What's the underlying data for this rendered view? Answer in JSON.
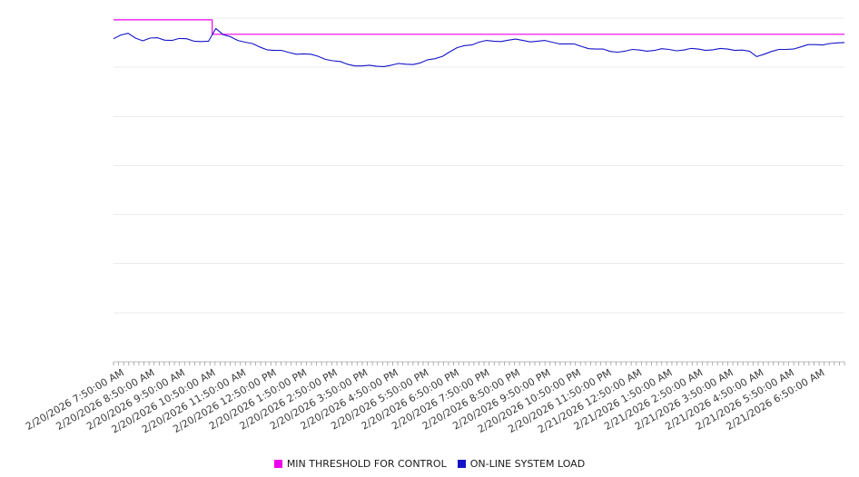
{
  "chart_data": {
    "type": "line",
    "title": "",
    "xlabel": "",
    "ylabel": "",
    "ylim": [
      0,
      100
    ],
    "grid": "horizontal",
    "gridline_count": 8,
    "legend_position": "bottom-center",
    "x_tick_labels": [
      "2/20/2026 7:50:00 AM",
      "2/20/2026 8:50:00 AM",
      "2/20/2026 9:50:00 AM",
      "2/20/2026 10:50:00 AM",
      "2/20/2026 11:50:00 AM",
      "2/20/2026 12:50:00 PM",
      "2/20/2026 1:50:00 PM",
      "2/20/2026 2:50:00 PM",
      "2/20/2026 3:50:00 PM",
      "2/20/2026 4:50:00 PM",
      "2/20/2026 5:50:00 PM",
      "2/20/2026 6:50:00 PM",
      "2/20/2026 7:50:00 PM",
      "2/20/2026 8:50:00 PM",
      "2/20/2026 9:50:00 PM",
      "2/20/2026 10:50:00 PM",
      "2/20/2026 11:50:00 PM",
      "2/21/2026 12:50:00 AM",
      "2/21/2026 1:50:00 AM",
      "2/21/2026 2:50:00 AM",
      "2/21/2026 3:50:00 AM",
      "2/21/2026 4:50:00 AM",
      "2/21/2026 5:50:00 AM",
      "2/21/2026 6:50:00 AM"
    ],
    "series": [
      {
        "name": "MIN THRESHOLD FOR CONTROL",
        "color": "#ee00ee",
        "points": [
          [
            0,
            99.5
          ],
          [
            0.135,
            99.5
          ],
          [
            0.135,
            95.3
          ],
          [
            1,
            95.3
          ]
        ]
      },
      {
        "name": "ON-LINE SYSTEM LOAD",
        "color": "#1414c8",
        "values": [
          94.0,
          95.1,
          95.6,
          94.2,
          93.4,
          94.2,
          94.3,
          93.6,
          93.5,
          94.1,
          94.0,
          93.3,
          93.2,
          93.3,
          97.0,
          95.2,
          94.6,
          93.5,
          93.0,
          92.6,
          91.6,
          90.8,
          90.6,
          90.6,
          90.0,
          89.5,
          89.6,
          89.5,
          88.9,
          88.0,
          87.6,
          87.4,
          86.6,
          86.1,
          86.1,
          86.3,
          86.0,
          85.9,
          86.3,
          86.8,
          86.6,
          86.5,
          87.0,
          87.9,
          88.2,
          88.9,
          90.2,
          91.4,
          92.0,
          92.2,
          93.0,
          93.5,
          93.3,
          93.2,
          93.6,
          93.9,
          93.5,
          93.1,
          93.3,
          93.5,
          93.0,
          92.5,
          92.5,
          92.5,
          91.8,
          91.1,
          91.0,
          91.0,
          90.3,
          90.1,
          90.4,
          90.9,
          90.7,
          90.4,
          90.6,
          91.1,
          90.9,
          90.5,
          90.7,
          91.2,
          91.0,
          90.6,
          90.8,
          91.2,
          91.0,
          90.6,
          90.7,
          90.4,
          88.8,
          89.5,
          90.3,
          90.9,
          90.9,
          91.0,
          91.6,
          92.3,
          92.3,
          92.2,
          92.6,
          92.8,
          92.9
        ]
      }
    ]
  }
}
